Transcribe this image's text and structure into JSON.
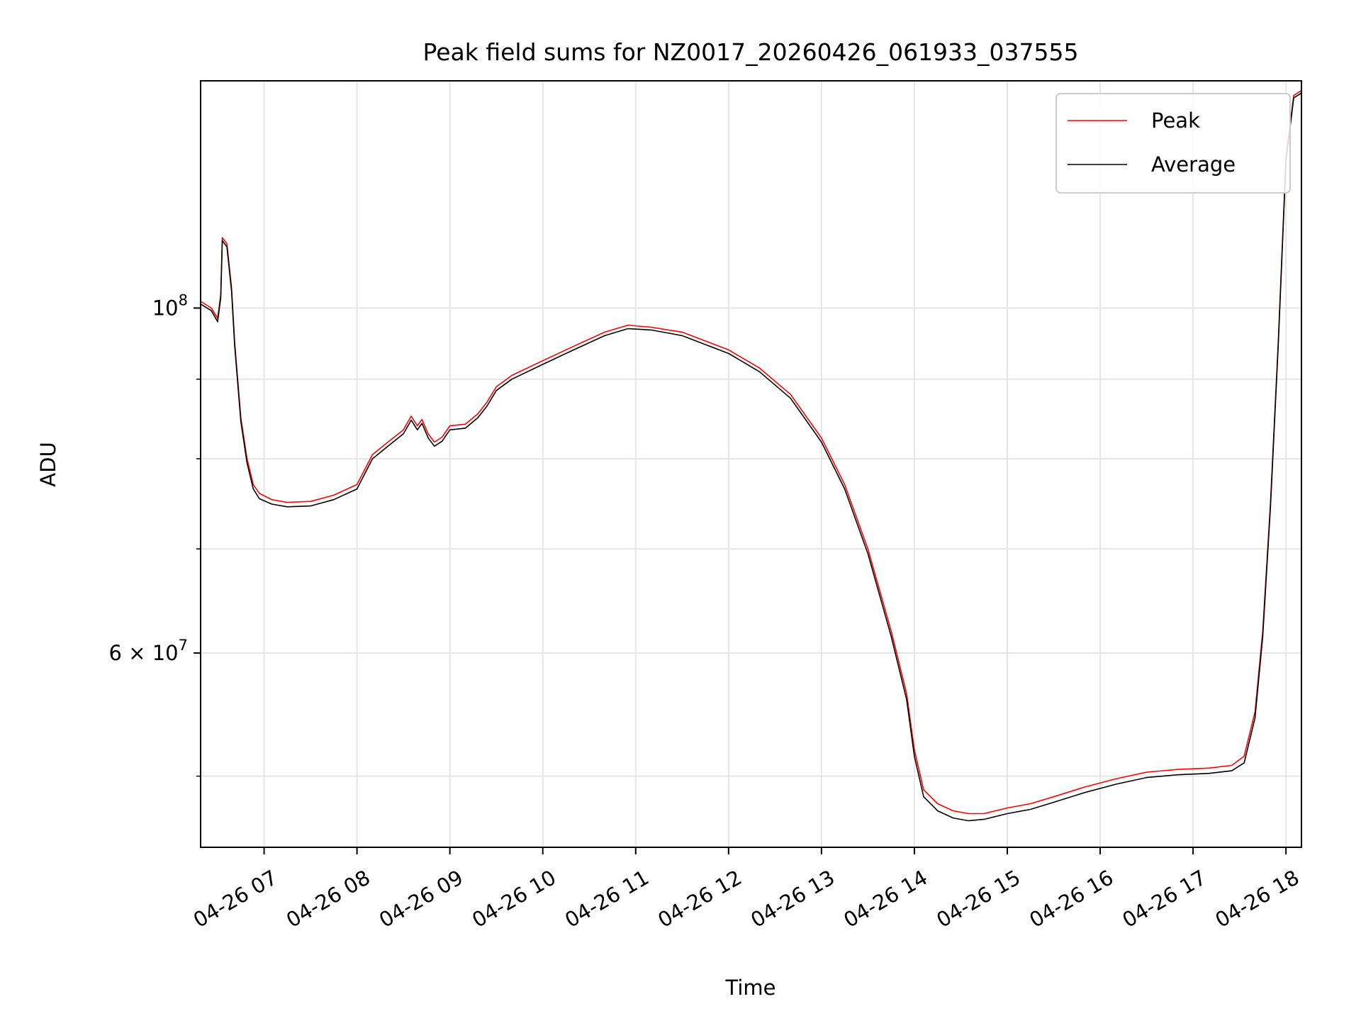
{
  "chart_data": {
    "type": "line",
    "title": "Peak field sums for NZ0017_20260426_061933_037555",
    "xlabel": "Time",
    "ylabel": "ADU",
    "y_scale": "log",
    "grid": true,
    "legend_position": "top-right",
    "xlim": [
      "2026-04-26 06:19",
      "2026-04-26 18:10"
    ],
    "ylim": [
      45000000,
      140000000
    ],
    "x_ticks": [
      {
        "value": "2026-04-26 07:00",
        "label": "04-26 07"
      },
      {
        "value": "2026-04-26 08:00",
        "label": "04-26 08"
      },
      {
        "value": "2026-04-26 09:00",
        "label": "04-26 09"
      },
      {
        "value": "2026-04-26 10:00",
        "label": "04-26 10"
      },
      {
        "value": "2026-04-26 11:00",
        "label": "04-26 11"
      },
      {
        "value": "2026-04-26 12:00",
        "label": "04-26 12"
      },
      {
        "value": "2026-04-26 13:00",
        "label": "04-26 13"
      },
      {
        "value": "2026-04-26 14:00",
        "label": "04-26 14"
      },
      {
        "value": "2026-04-26 15:00",
        "label": "04-26 15"
      },
      {
        "value": "2026-04-26 16:00",
        "label": "04-26 16"
      },
      {
        "value": "2026-04-26 17:00",
        "label": "04-26 17"
      },
      {
        "value": "2026-04-26 18:00",
        "label": "04-26 18"
      }
    ],
    "y_major_ticks": [
      {
        "value": 100000000,
        "label_base": "10",
        "label_exp": "8",
        "label_prefix": ""
      },
      {
        "value": 60000000,
        "label_base": "10",
        "label_exp": "7",
        "label_prefix": "6 × "
      }
    ],
    "y_minor_ticks": [
      50000000,
      70000000,
      80000000,
      90000000
    ],
    "series": [
      {
        "name": "Peak",
        "color": "#ff0000",
        "x": [
          "2026-04-26 06:19",
          "2026-04-26 06:26",
          "2026-04-26 06:30",
          "2026-04-26 06:32",
          "2026-04-26 06:33",
          "2026-04-26 06:36",
          "2026-04-26 06:39",
          "2026-04-26 06:41",
          "2026-04-26 06:45",
          "2026-04-26 06:49",
          "2026-04-26 06:53",
          "2026-04-26 06:57",
          "2026-04-26 07:05",
          "2026-04-26 07:15",
          "2026-04-26 07:30",
          "2026-04-26 07:45",
          "2026-04-26 08:00",
          "2026-04-26 08:10",
          "2026-04-26 08:20",
          "2026-04-26 08:30",
          "2026-04-26 08:35",
          "2026-04-26 08:39",
          "2026-04-26 08:42",
          "2026-04-26 08:46",
          "2026-04-26 08:50",
          "2026-04-26 08:55",
          "2026-04-26 09:00",
          "2026-04-26 09:10",
          "2026-04-26 09:18",
          "2026-04-26 09:24",
          "2026-04-26 09:30",
          "2026-04-26 09:40",
          "2026-04-26 10:00",
          "2026-04-26 10:20",
          "2026-04-26 10:40",
          "2026-04-26 10:55",
          "2026-04-26 11:10",
          "2026-04-26 11:30",
          "2026-04-26 12:00",
          "2026-04-26 12:20",
          "2026-04-26 12:40",
          "2026-04-26 13:00",
          "2026-04-26 13:15",
          "2026-04-26 13:30",
          "2026-04-26 13:45",
          "2026-04-26 13:55",
          "2026-04-26 14:00",
          "2026-04-26 14:06",
          "2026-04-26 14:15",
          "2026-04-26 14:25",
          "2026-04-26 14:35",
          "2026-04-26 14:45",
          "2026-04-26 15:00",
          "2026-04-26 15:15",
          "2026-04-26 15:30",
          "2026-04-26 15:50",
          "2026-04-26 16:10",
          "2026-04-26 16:30",
          "2026-04-26 16:50",
          "2026-04-26 17:10",
          "2026-04-26 17:25",
          "2026-04-26 17:33",
          "2026-04-26 17:40",
          "2026-04-26 17:45",
          "2026-04-26 17:50",
          "2026-04-26 17:55",
          "2026-04-26 18:00",
          "2026-04-26 18:05",
          "2026-04-26 18:10"
        ],
        "y": [
          101000000,
          100000000,
          98500000,
          102000000,
          111000000,
          110000000,
          103000000,
          95000000,
          85000000,
          80000000,
          77000000,
          76000000,
          75300000,
          75000000,
          75100000,
          75800000,
          77000000,
          80500000,
          82000000,
          83500000,
          85200000,
          84000000,
          84800000,
          83000000,
          82000000,
          82600000,
          84000000,
          84200000,
          85500000,
          87000000,
          89000000,
          90500000,
          92500000,
          94500000,
          96500000,
          97500000,
          97200000,
          96500000,
          94000000,
          91500000,
          88000000,
          82500000,
          77000000,
          70000000,
          62000000,
          56500000,
          52000000,
          49000000,
          48000000,
          47500000,
          47300000,
          47300000,
          47700000,
          48000000,
          48500000,
          49200000,
          49800000,
          50300000,
          50500000,
          50600000,
          50800000,
          51500000,
          55000000,
          62000000,
          75000000,
          95000000,
          125000000,
          137000000,
          138000000
        ]
      },
      {
        "name": "Average",
        "color": "#000000",
        "x": [
          "2026-04-26 06:19",
          "2026-04-26 06:26",
          "2026-04-26 06:30",
          "2026-04-26 06:32",
          "2026-04-26 06:33",
          "2026-04-26 06:36",
          "2026-04-26 06:39",
          "2026-04-26 06:41",
          "2026-04-26 06:45",
          "2026-04-26 06:49",
          "2026-04-26 06:53",
          "2026-04-26 06:57",
          "2026-04-26 07:05",
          "2026-04-26 07:15",
          "2026-04-26 07:30",
          "2026-04-26 07:45",
          "2026-04-26 08:00",
          "2026-04-26 08:10",
          "2026-04-26 08:20",
          "2026-04-26 08:30",
          "2026-04-26 08:35",
          "2026-04-26 08:39",
          "2026-04-26 08:42",
          "2026-04-26 08:46",
          "2026-04-26 08:50",
          "2026-04-26 08:55",
          "2026-04-26 09:00",
          "2026-04-26 09:10",
          "2026-04-26 09:18",
          "2026-04-26 09:24",
          "2026-04-26 09:30",
          "2026-04-26 09:40",
          "2026-04-26 10:00",
          "2026-04-26 10:20",
          "2026-04-26 10:40",
          "2026-04-26 10:55",
          "2026-04-26 11:10",
          "2026-04-26 11:30",
          "2026-04-26 12:00",
          "2026-04-26 12:20",
          "2026-04-26 12:40",
          "2026-04-26 13:00",
          "2026-04-26 13:15",
          "2026-04-26 13:30",
          "2026-04-26 13:45",
          "2026-04-26 13:55",
          "2026-04-26 14:00",
          "2026-04-26 14:06",
          "2026-04-26 14:15",
          "2026-04-26 14:25",
          "2026-04-26 14:35",
          "2026-04-26 14:45",
          "2026-04-26 15:00",
          "2026-04-26 15:15",
          "2026-04-26 15:30",
          "2026-04-26 15:50",
          "2026-04-26 16:10",
          "2026-04-26 16:30",
          "2026-04-26 16:50",
          "2026-04-26 17:10",
          "2026-04-26 17:25",
          "2026-04-26 17:33",
          "2026-04-26 17:40",
          "2026-04-26 17:45",
          "2026-04-26 17:50",
          "2026-04-26 17:55",
          "2026-04-26 18:00",
          "2026-04-26 18:05",
          "2026-04-26 18:10"
        ],
        "y": [
          100600000,
          99600000,
          98000000,
          101500000,
          110500000,
          109500000,
          102500000,
          94500000,
          84500000,
          79500000,
          76500000,
          75400000,
          74800000,
          74500000,
          74600000,
          75300000,
          76500000,
          80000000,
          81500000,
          83000000,
          84700000,
          83500000,
          84300000,
          82500000,
          81500000,
          82100000,
          83500000,
          83700000,
          85000000,
          86500000,
          88500000,
          90000000,
          92000000,
          94000000,
          96000000,
          97000000,
          96800000,
          96000000,
          93500000,
          91000000,
          87500000,
          82000000,
          76500000,
          69500000,
          61500000,
          56000000,
          51500000,
          48500000,
          47500000,
          47000000,
          46800000,
          46900000,
          47300000,
          47600000,
          48100000,
          48800000,
          49400000,
          49900000,
          50100000,
          50200000,
          50400000,
          51000000,
          54500000,
          61500000,
          74500000,
          94500000,
          124500000,
          136500000,
          137500000
        ]
      }
    ]
  }
}
